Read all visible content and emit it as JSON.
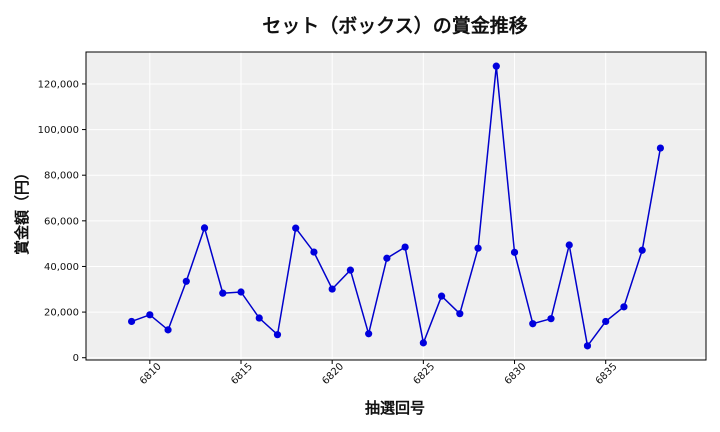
{
  "chart_data": {
    "type": "line",
    "title": "セット（ボックス）の賞金推移",
    "xlabel": "抽選回号",
    "ylabel": "賞金額（円）",
    "x": [
      6809,
      6810,
      6811,
      6812,
      6813,
      6814,
      6815,
      6816,
      6817,
      6818,
      6819,
      6820,
      6821,
      6822,
      6823,
      6824,
      6825,
      6826,
      6827,
      6828,
      6829,
      6830,
      6831,
      6832,
      6833,
      6834,
      6835,
      6836,
      6837,
      6838
    ],
    "y": [
      15900,
      18800,
      12200,
      33500,
      56900,
      28300,
      28800,
      17400,
      10100,
      56800,
      46300,
      30100,
      38400,
      10500,
      43600,
      48500,
      6500,
      27000,
      19300,
      48000,
      127800,
      46200,
      14900,
      17100,
      49400,
      5200,
      15900,
      22300,
      47100,
      91900
    ],
    "xlim": [
      6806.5,
      6840.5
    ],
    "ylim": [
      -1000,
      134000
    ],
    "xticks": [
      "6810",
      "6815",
      "6820",
      "6825",
      "6830",
      "6835"
    ],
    "yticks": [
      "0",
      "20,000",
      "40,000",
      "60,000",
      "80,000",
      "100,000",
      "120,000"
    ],
    "grid": true,
    "line_color": "#0000cc",
    "marker_color": "#0000dd",
    "plot_bg": "#efefef"
  }
}
